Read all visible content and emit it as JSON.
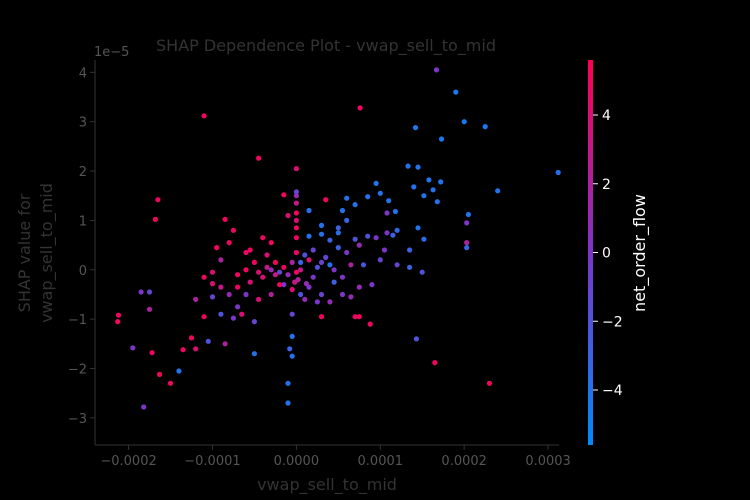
{
  "chart_data": {
    "type": "scatter",
    "title": "SHAP Dependence Plot - vwap_sell_to_mid",
    "xlabel": "vwap_sell_to_mid",
    "ylabel_line1": "SHAP value for",
    "ylabel_line2": "vwap_sell_to_mid",
    "y_scale_label": "1e−5",
    "xlim": [
      -0.00024,
      0.000313
    ],
    "ylim": [
      -3.55,
      4.25
    ],
    "x_ticks": [
      -0.0002,
      -0.0001,
      0.0,
      0.0001,
      0.0002,
      0.0003
    ],
    "x_tick_labels": [
      "−0.0002",
      "−0.0001",
      "0.0000",
      "0.0001",
      "0.0002",
      "0.0003"
    ],
    "y_ticks": [
      -3,
      -2,
      -1,
      0,
      1,
      2,
      3,
      4
    ],
    "y_tick_labels": [
      "−3",
      "−2",
      "−1",
      "0",
      "1",
      "2",
      "3",
      "4"
    ],
    "colorbar": {
      "label": "net_order_flow",
      "range": [
        -5.6,
        5.6
      ],
      "ticks": [
        -4,
        -2,
        0,
        2,
        4
      ],
      "tick_labels": [
        "−4",
        "−2",
        "0",
        "2",
        "4"
      ],
      "color_low": "#008afb",
      "color_mid": "#7c35c7",
      "color_high": "#ff0052"
    },
    "points": [
      [
        0.000167,
        4.05,
        0.0
      ],
      [
        0.00019,
        3.6,
        -4.5
      ],
      [
        0.0002,
        3.0,
        -4.5
      ],
      [
        0.000225,
        2.9,
        -4.5
      ],
      [
        0.000142,
        2.88,
        -4.5
      ],
      [
        0.000173,
        2.65,
        -4.5
      ],
      [
        7.6e-05,
        3.28,
        5.0
      ],
      [
        -0.00011,
        3.12,
        5.0
      ],
      [
        -4.5e-05,
        2.26,
        5.0
      ],
      [
        0.00024,
        1.6,
        -4.0
      ],
      [
        0.000312,
        1.97,
        -4.0
      ],
      [
        0.000145,
        2.08,
        -4.0
      ],
      [
        0.000133,
        2.1,
        -4.0
      ],
      [
        0.000158,
        1.82,
        -4.0
      ],
      [
        0.000172,
        1.78,
        -4.0
      ],
      [
        0.000163,
        1.62,
        -4.0
      ],
      [
        0.00014,
        1.68,
        -4.0
      ],
      [
        0.000152,
        1.5,
        -4.0
      ],
      [
        0.000168,
        1.38,
        -4.0
      ],
      [
        0.00011,
        1.4,
        -4.0
      ],
      [
        0.0001,
        1.55,
        -4.0
      ],
      [
        9.5e-05,
        1.75,
        -4.0
      ],
      [
        8.5e-05,
        1.48,
        -4.0
      ],
      [
        7e-05,
        1.32,
        -4.0
      ],
      [
        6e-05,
        1.45,
        -4.0
      ],
      [
        5.5e-05,
        1.2,
        -4.0
      ],
      [
        0.000205,
        1.12,
        -4.0
      ],
      [
        0.000203,
        0.95,
        0.0
      ],
      [
        0.000203,
        0.55,
        2.0
      ],
      [
        0.000203,
        0.45,
        -3.0
      ],
      [
        0.000145,
        0.85,
        -4.0
      ],
      [
        0.00012,
        0.8,
        -3.5
      ],
      [
        0.000135,
        0.4,
        -3.0
      ],
      [
        0.000152,
        0.62,
        -3.5
      ],
      [
        0.000108,
        0.75,
        0.0
      ],
      [
        9.5e-05,
        0.65,
        0.0
      ],
      [
        0.000118,
        1.18,
        -4.0
      ],
      [
        0.000108,
        1.15,
        0.0
      ],
      [
        0.0001,
        0.2,
        -1.0
      ],
      [
        8.5e-05,
        0.68,
        -2.0
      ],
      [
        7e-05,
        0.62,
        -2.0
      ],
      [
        7.5e-05,
        0.5,
        1.0
      ],
      [
        5e-05,
        0.85,
        -3.0
      ],
      [
        4e-05,
        0.6,
        -3.0
      ],
      [
        3e-05,
        0.72,
        -4.0
      ],
      [
        1.5e-05,
        0.68,
        -4.0
      ],
      [
        2e-05,
        0.4,
        -1.0
      ],
      [
        1e-05,
        0.3,
        -2.0
      ],
      [
        3.5e-05,
        0.25,
        -1.0
      ],
      [
        6e-05,
        0.35,
        0.0
      ],
      [
        6.5e-05,
        0.1,
        2.0
      ],
      [
        4.5e-05,
        0.0,
        0.0
      ],
      [
        5.5e-05,
        -0.15,
        0.0
      ],
      [
        7.5e-05,
        -0.35,
        1.0
      ],
      [
        9e-05,
        -0.3,
        0.0
      ],
      [
        0.00012,
        0.1,
        -1.0
      ],
      [
        0.000135,
        0.05,
        -3.0
      ],
      [
        0.00015,
        -0.05,
        -2.0
      ],
      [
        0.000143,
        -1.4,
        -2.0
      ],
      [
        0.000165,
        -1.88,
        5.0
      ],
      [
        0.00023,
        -2.3,
        5.0
      ],
      [
        8.8e-05,
        -1.1,
        5.0
      ],
      [
        7.5e-05,
        -0.95,
        5.0
      ],
      [
        4e-05,
        -0.65,
        1.0
      ],
      [
        3e-05,
        -0.5,
        -1.0
      ],
      [
        1.5e-05,
        -0.35,
        0.0
      ],
      [
        2.5e-05,
        -0.65,
        0.0
      ],
      [
        1e-05,
        -0.6,
        1.0
      ],
      [
        0.0,
        -0.05,
        5.0
      ],
      [
        0.0,
        0.35,
        5.0
      ],
      [
        0.0,
        0.65,
        5.0
      ],
      [
        0.0,
        0.85,
        5.0
      ],
      [
        0.0,
        1.15,
        5.0
      ],
      [
        0.0,
        1.35,
        3.0
      ],
      [
        0.0,
        1.5,
        1.0
      ],
      [
        0.0,
        1.58,
        -1.0
      ],
      [
        0.0,
        2.05,
        4.0
      ],
      [
        0.0,
        1.0,
        4.0
      ],
      [
        5e-06,
        0.0,
        3.0
      ],
      [
        2e-06,
        -0.2,
        2.0
      ],
      [
        -2e-06,
        -0.25,
        3.0
      ],
      [
        1.2e-05,
        -0.28,
        1.0
      ],
      [
        2e-05,
        -0.15,
        0.0
      ],
      [
        2.5e-05,
        0.05,
        -2.0
      ],
      [
        3e-05,
        0.15,
        -1.0
      ],
      [
        -5e-06,
        0.15,
        2.0
      ],
      [
        -1e-05,
        -0.1,
        1.0
      ],
      [
        -1.5e-05,
        -0.3,
        0.0
      ],
      [
        -2e-05,
        -0.05,
        -1.0
      ],
      [
        5e-06,
        -0.5,
        -2.0
      ],
      [
        -5e-06,
        -0.4,
        4.0
      ],
      [
        1.5e-05,
        0.2,
        4.0
      ],
      [
        3.5e-05,
        1.42,
        5.0
      ],
      [
        1.5e-05,
        1.2,
        -4.0
      ],
      [
        -1.5e-05,
        1.52,
        5.0
      ],
      [
        -1e-05,
        1.1,
        4.0
      ],
      [
        -5e-06,
        -0.9,
        -1.0
      ],
      [
        -8e-06,
        -1.6,
        -3.0
      ],
      [
        -5e-06,
        -1.75,
        -4.0
      ],
      [
        -1e-05,
        -2.3,
        -4.0
      ],
      [
        -1e-05,
        -2.7,
        -4.0
      ],
      [
        -5e-06,
        -1.35,
        -4.0
      ],
      [
        7e-05,
        -0.95,
        5.0
      ],
      [
        3e-05,
        -0.95,
        5.0
      ],
      [
        -3e-05,
        0.55,
        5.0
      ],
      [
        -4e-05,
        0.65,
        5.0
      ],
      [
        -5e-05,
        0.15,
        5.0
      ],
      [
        -6e-05,
        0.0,
        5.0
      ],
      [
        -5.5e-05,
        -0.25,
        4.0
      ],
      [
        -4.5e-05,
        -0.6,
        4.0
      ],
      [
        -3.5e-05,
        0.05,
        3.0
      ],
      [
        -2.5e-05,
        -0.1,
        3.0
      ],
      [
        -3e-05,
        -0.5,
        2.0
      ],
      [
        -7e-05,
        -0.35,
        5.0
      ],
      [
        -8e-05,
        0.55,
        5.0
      ],
      [
        -8.5e-05,
        1.02,
        5.0
      ],
      [
        -7.5e-05,
        0.8,
        5.0
      ],
      [
        -9e-05,
        0.2,
        2.0
      ],
      [
        -0.0001,
        -0.05,
        4.0
      ],
      [
        -0.00011,
        -0.15,
        5.0
      ],
      [
        -9.5e-05,
        0.45,
        5.0
      ],
      [
        -8e-05,
        -0.5,
        1.0
      ],
      [
        -7e-05,
        -0.75,
        0.0
      ],
      [
        -6e-05,
        -0.5,
        0.0
      ],
      [
        -6.5e-05,
        -0.9,
        4.0
      ],
      [
        -5e-05,
        -1.05,
        -1.0
      ],
      [
        -7.5e-05,
        -0.98,
        0.0
      ],
      [
        -9e-05,
        -0.9,
        -2.0
      ],
      [
        -0.0001,
        -0.55,
        -1.0
      ],
      [
        -0.00011,
        -0.95,
        5.0
      ],
      [
        -0.000105,
        -1.45,
        -2.0
      ],
      [
        -0.00012,
        -1.6,
        4.0
      ],
      [
        -0.000125,
        -1.38,
        5.0
      ],
      [
        -0.000135,
        -1.62,
        5.0
      ],
      [
        -0.00014,
        -2.05,
        -4.0
      ],
      [
        -0.00015,
        -2.3,
        5.0
      ],
      [
        -0.000163,
        -2.12,
        5.0
      ],
      [
        -0.000172,
        -1.68,
        5.0
      ],
      [
        -0.000168,
        1.02,
        5.0
      ],
      [
        -0.000165,
        1.42,
        5.0
      ],
      [
        -0.000175,
        -0.45,
        -1.0
      ],
      [
        -0.000185,
        -0.45,
        0.0
      ],
      [
        -0.000195,
        -1.58,
        0.0
      ],
      [
        -0.000212,
        -0.92,
        5.0
      ],
      [
        -0.000213,
        -1.05,
        5.0
      ],
      [
        -0.000182,
        -2.78,
        0.0
      ],
      [
        -0.000175,
        -0.8,
        2.0
      ],
      [
        -0.00012,
        -0.6,
        2.0
      ],
      [
        -8.5e-05,
        -1.5,
        2.0
      ],
      [
        -5e-05,
        -1.7,
        -4.0
      ],
      [
        -0.0001,
        -0.28,
        4.0
      ],
      [
        -9e-05,
        -0.35,
        3.0
      ],
      [
        -7e-05,
        -0.1,
        5.0
      ],
      [
        -6e-05,
        0.35,
        5.0
      ],
      [
        -5.5e-05,
        0.4,
        5.0
      ],
      [
        -4e-05,
        -0.15,
        4.0
      ],
      [
        -3.5e-05,
        0.3,
        4.0
      ],
      [
        -2.5e-05,
        0.15,
        5.0
      ],
      [
        -2e-05,
        -0.3,
        5.0
      ],
      [
        -1.5e-05,
        0.05,
        5.0
      ],
      [
        -4.5e-05,
        -0.05,
        4.0
      ],
      [
        4.5e-05,
        -0.25,
        -3.0
      ],
      [
        5.5e-05,
        -0.5,
        0.0
      ],
      [
        6.5e-05,
        -0.55,
        1.0
      ],
      [
        4e-05,
        0.1,
        -4.0
      ],
      [
        5e-05,
        0.45,
        -3.0
      ],
      [
        5e-05,
        0.75,
        -4.0
      ],
      [
        6e-05,
        1.0,
        -3.0
      ],
      [
        3e-05,
        0.9,
        -4.0
      ],
      [
        5e-06,
        0.15,
        -3.0
      ],
      [
        -3e-05,
        0.0,
        1.0
      ],
      [
        8e-05,
        0.1,
        -2.0
      ],
      [
        0.000105,
        0.4,
        0.0
      ],
      [
        0.000115,
        0.7,
        -3.0
      ]
    ]
  }
}
